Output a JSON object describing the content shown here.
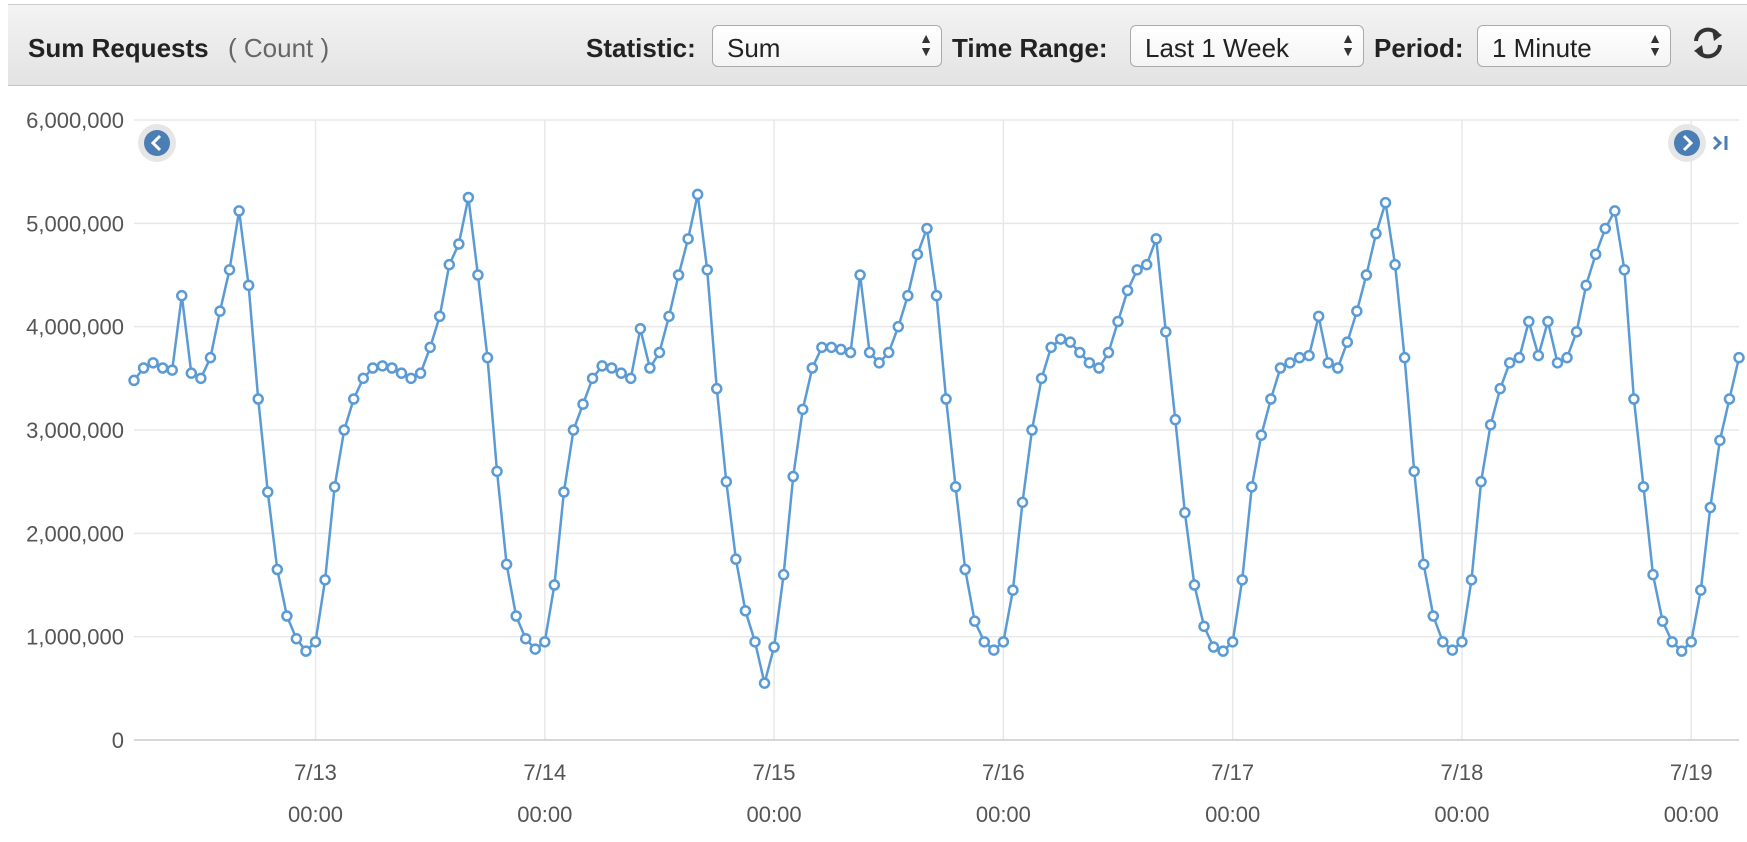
{
  "header": {
    "title": "Sum Requests",
    "unit": "( Count )",
    "statistic_label": "Statistic:",
    "statistic": "Sum",
    "time_range_label": "Time Range:",
    "time_range": "Last 1 Week",
    "period_label": "Period:",
    "period": "1 Minute"
  },
  "chart_data": {
    "type": "line",
    "color": "#5b9bd5",
    "grid": true,
    "xlim": [
      "7/12 05:00",
      "7/19 05:00"
    ],
    "xticks": [
      {
        "value": "7/13 00:00",
        "label": [
          "7/13",
          "00:00"
        ]
      },
      {
        "value": "7/14 00:00",
        "label": [
          "7/14",
          "00:00"
        ]
      },
      {
        "value": "7/15 00:00",
        "label": [
          "7/15",
          "00:00"
        ]
      },
      {
        "value": "7/16 00:00",
        "label": [
          "7/16",
          "00:00"
        ]
      },
      {
        "value": "7/17 00:00",
        "label": [
          "7/17",
          "00:00"
        ]
      },
      {
        "value": "7/18 00:00",
        "label": [
          "7/18",
          "00:00"
        ]
      },
      {
        "value": "7/19 00:00",
        "label": [
          "7/19",
          "00:00"
        ]
      }
    ],
    "ylim": [
      0,
      6000000
    ],
    "yticks": [
      0,
      {
        "value": 1000000,
        "label": "1,000,000"
      },
      {
        "value": 2000000,
        "label": "2,000,000"
      },
      {
        "value": 3000000,
        "label": "3,000,000"
      },
      {
        "value": 4000000,
        "label": "4,000,000"
      },
      {
        "value": 5000000,
        "label": "5,000,000"
      },
      {
        "value": 6000000,
        "label": "6,000,000"
      }
    ],
    "x": [
      "7/12 05:00",
      "7/12 06:00",
      "7/12 07:00",
      "7/12 08:00",
      "7/12 09:00",
      "7/12 10:00",
      "7/12 11:00",
      "7/12 12:00",
      "7/12 13:00",
      "7/12 14:00",
      "7/12 15:00",
      "7/12 16:00",
      "7/12 17:00",
      "7/12 18:00",
      "7/12 19:00",
      "7/12 20:00",
      "7/12 21:00",
      "7/12 22:00",
      "7/12 23:00",
      "7/13 00:00",
      "7/13 01:00",
      "7/13 02:00",
      "7/13 03:00",
      "7/13 04:00",
      "7/13 05:00",
      "7/13 06:00",
      "7/13 07:00",
      "7/13 08:00",
      "7/13 09:00",
      "7/13 10:00",
      "7/13 11:00",
      "7/13 12:00",
      "7/13 13:00",
      "7/13 14:00",
      "7/13 15:00",
      "7/13 16:00",
      "7/13 17:00",
      "7/13 18:00",
      "7/13 19:00",
      "7/13 20:00",
      "7/13 21:00",
      "7/13 22:00",
      "7/13 23:00",
      "7/14 00:00",
      "7/14 01:00",
      "7/14 02:00",
      "7/14 03:00",
      "7/14 04:00",
      "7/14 05:00",
      "7/14 06:00",
      "7/14 07:00",
      "7/14 08:00",
      "7/14 09:00",
      "7/14 10:00",
      "7/14 11:00",
      "7/14 12:00",
      "7/14 13:00",
      "7/14 14:00",
      "7/14 15:00",
      "7/14 16:00",
      "7/14 17:00",
      "7/14 18:00",
      "7/14 19:00",
      "7/14 20:00",
      "7/14 21:00",
      "7/14 22:00",
      "7/14 23:00",
      "7/15 00:00",
      "7/15 01:00",
      "7/15 02:00",
      "7/15 03:00",
      "7/15 04:00",
      "7/15 05:00",
      "7/15 06:00",
      "7/15 07:00",
      "7/15 08:00",
      "7/15 09:00",
      "7/15 10:00",
      "7/15 11:00",
      "7/15 12:00",
      "7/15 13:00",
      "7/15 14:00",
      "7/15 15:00",
      "7/15 16:00",
      "7/15 17:00",
      "7/15 18:00",
      "7/15 19:00",
      "7/15 20:00",
      "7/15 21:00",
      "7/15 22:00",
      "7/15 23:00",
      "7/16 00:00",
      "7/16 01:00",
      "7/16 02:00",
      "7/16 03:00",
      "7/16 04:00",
      "7/16 05:00",
      "7/16 06:00",
      "7/16 07:00",
      "7/16 08:00",
      "7/16 09:00",
      "7/16 10:00",
      "7/16 11:00",
      "7/16 12:00",
      "7/16 13:00",
      "7/16 14:00",
      "7/16 15:00",
      "7/16 16:00",
      "7/16 17:00",
      "7/16 18:00",
      "7/16 19:00",
      "7/16 20:00",
      "7/16 21:00",
      "7/16 22:00",
      "7/16 23:00",
      "7/17 00:00",
      "7/17 01:00",
      "7/17 02:00",
      "7/17 03:00",
      "7/17 04:00",
      "7/17 05:00",
      "7/17 06:00",
      "7/17 07:00",
      "7/17 08:00",
      "7/17 09:00",
      "7/17 10:00",
      "7/17 11:00",
      "7/17 12:00",
      "7/17 13:00",
      "7/17 14:00",
      "7/17 15:00",
      "7/17 16:00",
      "7/17 17:00",
      "7/17 18:00",
      "7/17 19:00",
      "7/17 20:00",
      "7/17 21:00",
      "7/17 22:00",
      "7/17 23:00",
      "7/18 00:00",
      "7/18 01:00",
      "7/18 02:00",
      "7/18 03:00",
      "7/18 04:00",
      "7/18 05:00",
      "7/18 06:00",
      "7/18 07:00",
      "7/18 08:00",
      "7/18 09:00",
      "7/18 10:00",
      "7/18 11:00",
      "7/18 12:00",
      "7/18 13:00",
      "7/18 14:00",
      "7/18 15:00",
      "7/18 16:00",
      "7/18 17:00",
      "7/18 18:00",
      "7/18 19:00",
      "7/18 20:00",
      "7/18 21:00",
      "7/18 22:00",
      "7/18 23:00",
      "7/19 00:00",
      "7/19 01:00",
      "7/19 02:00",
      "7/19 03:00",
      "7/19 04:00",
      "7/19 05:00"
    ],
    "values": [
      3480000,
      3600000,
      3650000,
      3600000,
      3580000,
      4300000,
      3550000,
      3500000,
      3700000,
      4150000,
      4550000,
      5120000,
      4400000,
      3300000,
      2400000,
      1650000,
      1200000,
      980000,
      860000,
      950000,
      1550000,
      2450000,
      3000000,
      3300000,
      3500000,
      3600000,
      3620000,
      3600000,
      3550000,
      3500000,
      3550000,
      3800000,
      4100000,
      4600000,
      4800000,
      5250000,
      4500000,
      3700000,
      2600000,
      1700000,
      1200000,
      980000,
      880000,
      950000,
      1500000,
      2400000,
      3000000,
      3250000,
      3500000,
      3620000,
      3600000,
      3550000,
      3500000,
      3980000,
      3600000,
      3750000,
      4100000,
      4500000,
      4850000,
      5280000,
      4550000,
      3400000,
      2500000,
      1750000,
      1250000,
      950000,
      550000,
      900000,
      1600000,
      2550000,
      3200000,
      3600000,
      3800000,
      3800000,
      3780000,
      3750000,
      4500000,
      3750000,
      3650000,
      3750000,
      4000000,
      4300000,
      4700000,
      4950000,
      4300000,
      3300000,
      2450000,
      1650000,
      1150000,
      950000,
      870000,
      950000,
      1450000,
      2300000,
      3000000,
      3500000,
      3800000,
      3880000,
      3850000,
      3750000,
      3650000,
      3600000,
      3750000,
      4050000,
      4350000,
      4550000,
      4600000,
      4850000,
      3950000,
      3100000,
      2200000,
      1500000,
      1100000,
      900000,
      860000,
      950000,
      1550000,
      2450000,
      2950000,
      3300000,
      3600000,
      3650000,
      3700000,
      3720000,
      4100000,
      3650000,
      3600000,
      3850000,
      4150000,
      4500000,
      4900000,
      5200000,
      4600000,
      3700000,
      2600000,
      1700000,
      1200000,
      950000,
      870000,
      950000,
      1550000,
      2500000,
      3050000,
      3400000,
      3650000,
      3700000,
      4050000,
      3720000,
      4050000,
      3650000,
      3700000,
      3950000,
      4400000,
      4700000,
      4950000,
      5120000,
      4550000,
      3300000,
      2450000,
      1600000,
      1150000,
      950000,
      860000,
      950000,
      1450000,
      2250000,
      2900000,
      3300000,
      3700000
    ]
  }
}
